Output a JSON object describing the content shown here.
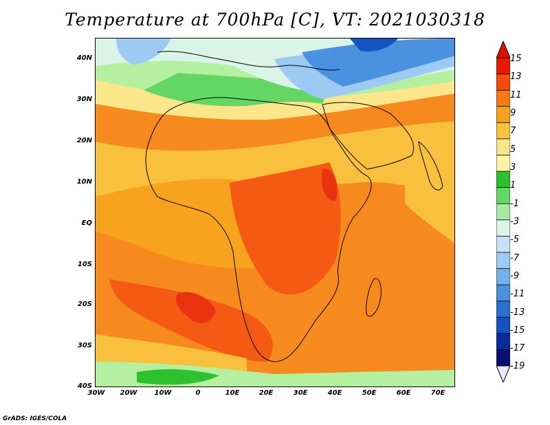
{
  "title": "Temperature at 700hPa [C], VT: 2021030318",
  "credit": "GrADS: IGES/COLA",
  "lat_labels": [
    "40N",
    "30N",
    "20N",
    "10N",
    "EQ",
    "10S",
    "20S",
    "30S",
    "40S"
  ],
  "lon_labels": [
    "30W",
    "20W",
    "10W",
    "0",
    "10E",
    "20E",
    "30E",
    "40E",
    "50E",
    "60E",
    "70E"
  ],
  "colorbar": {
    "labels": [
      "15",
      "13",
      "11",
      "9",
      "7",
      "5",
      "3",
      "1",
      "-1",
      "-3",
      "-5",
      "-7",
      "-9",
      "-11",
      "-13",
      "-15",
      "-17",
      "-19"
    ],
    "colors": [
      "#e81a00",
      "#f84a0a",
      "#f77a14",
      "#f7a21e",
      "#f8c43c",
      "#fbe58c",
      "#fff4a8",
      "#2ec02e",
      "#64d664",
      "#a4eaa4",
      "#daf5e8",
      "#c6e2f8",
      "#9ccaf2",
      "#74b0ea",
      "#4a92e0",
      "#2a72d2",
      "#1454c2",
      "#0a2c9a",
      "#0a1070"
    ],
    "top_arrow_color": "#e01000",
    "bottom_arrow_color": "#e8e8f8"
  },
  "map_colors": {
    "very_hot": "#e83210",
    "hot": "#f45a14",
    "warm": "#f78a1e",
    "mild": "#f7a31e",
    "tepid": "#f8c03c",
    "cool": "#fbe68c",
    "light_green": "#b4f0a0",
    "green": "#64d664",
    "dark_green": "#2ec02e",
    "pale_blue": "#daf5e8",
    "light_blue": "#9ccaf2",
    "blue": "#4a92e0",
    "dark_blue": "#1454c2"
  }
}
